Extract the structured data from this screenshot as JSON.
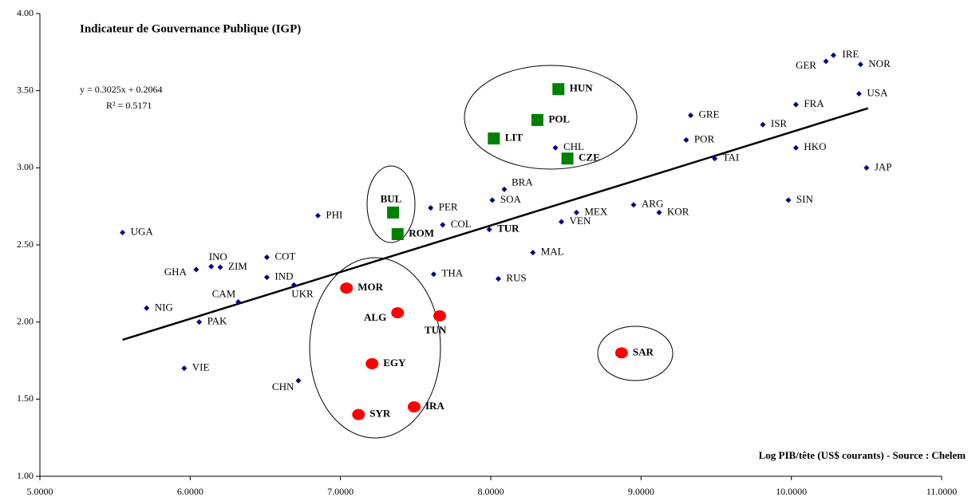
{
  "chart_data": {
    "type": "scatter",
    "title": "Indicateur de Gouvernance  Publique (IGP)",
    "equation": "y = 0.3025x + 0.2064",
    "r_squared": "R² = 0.5171",
    "x_label": "Log PIB/tête (US$ courants) - Source : Chelem",
    "xlim": [
      5,
      11
    ],
    "ylim": [
      1,
      4
    ],
    "xticks": [
      {
        "value": 5,
        "label": "5.0000"
      },
      {
        "value": 6,
        "label": "6.0000"
      },
      {
        "value": 7,
        "label": "7.0000"
      },
      {
        "value": 8,
        "label": "8.0000"
      },
      {
        "value": 9,
        "label": "9.0000"
      },
      {
        "value": 10,
        "label": "10.0000"
      },
      {
        "value": 11,
        "label": "11.0000"
      }
    ],
    "yticks": [
      {
        "value": 1,
        "label": "1.00"
      },
      {
        "value": 1.5,
        "label": "1.50"
      },
      {
        "value": 2,
        "label": "2.00"
      },
      {
        "value": 2.5,
        "label": "2.50"
      },
      {
        "value": 3,
        "label": "3.00"
      },
      {
        "value": 3.5,
        "label": "3.50"
      },
      {
        "value": 4,
        "label": "4.00"
      }
    ],
    "trendline": {
      "color": "#000000",
      "x": [
        5.55,
        10.51
      ],
      "y": [
        1.885,
        3.386
      ]
    },
    "series": [
      {
        "color": "#000080",
        "marker": "diamond",
        "bold": false,
        "labels": [
          "UGA",
          "NIG",
          "PAK",
          "VIE",
          "GHA",
          "INO",
          "ZIM",
          "CAM",
          "COT",
          "IND",
          "UKR",
          "PHI",
          "CHN",
          "PER",
          "COL",
          "THA",
          "SOA",
          "BRA",
          "MAL",
          "RUS",
          "VEN",
          "MEX",
          "CHL",
          "ARG",
          "KOR",
          "GRE",
          "POR",
          "TAI",
          "ISR",
          "SIN",
          "HKO",
          "FRA",
          "GER",
          "IRE",
          "NOR",
          "USA",
          "JAP"
        ],
        "x": [
          5.55,
          5.71,
          6.06,
          5.96,
          6.04,
          6.14,
          6.2,
          6.32,
          6.51,
          6.51,
          6.69,
          6.85,
          6.72,
          7.6,
          7.68,
          7.62,
          8.01,
          8.09,
          8.28,
          8.05,
          8.47,
          8.57,
          8.43,
          8.95,
          9.12,
          9.33,
          9.3,
          9.49,
          9.81,
          9.98,
          10.03,
          10.03,
          10.23,
          10.28,
          10.46,
          10.45,
          10.5
        ],
        "values": [
          2.58,
          2.09,
          2.0,
          1.7,
          2.34,
          2.36,
          2.355,
          2.13,
          2.42,
          2.29,
          2.24,
          2.69,
          1.62,
          2.74,
          2.63,
          2.31,
          2.79,
          2.86,
          2.45,
          2.28,
          2.65,
          2.71,
          3.13,
          2.76,
          2.71,
          3.34,
          3.18,
          3.06,
          3.28,
          2.79,
          3.13,
          3.41,
          3.69,
          3.73,
          3.67,
          3.48,
          3.0
        ]
      },
      {
        "color": "#000080",
        "marker": "diamond",
        "bold": true,
        "labels": [
          "TUR"
        ],
        "x": [
          7.99
        ],
        "values": [
          2.6
        ]
      },
      {
        "color": "#008000",
        "marker": "square",
        "bold": true,
        "labels": [
          "HUN",
          "POL",
          "LIT",
          "CZE",
          "BUL",
          "ROM"
        ],
        "x": [
          8.45,
          8.31,
          8.02,
          8.51,
          7.35,
          7.38
        ],
        "values": [
          3.51,
          3.31,
          3.19,
          3.06,
          2.71,
          2.57
        ]
      },
      {
        "color": "#ff0000",
        "marker": "circle",
        "bold": true,
        "labels": [
          "MOR",
          "ALG",
          "TUN",
          "EGY",
          "SYR",
          "IRA",
          "SAR"
        ],
        "x": [
          7.04,
          7.38,
          7.66,
          7.21,
          7.12,
          7.49,
          8.87
        ],
        "values": [
          2.22,
          2.06,
          2.04,
          1.73,
          1.4,
          1.45,
          1.8
        ]
      }
    ]
  }
}
